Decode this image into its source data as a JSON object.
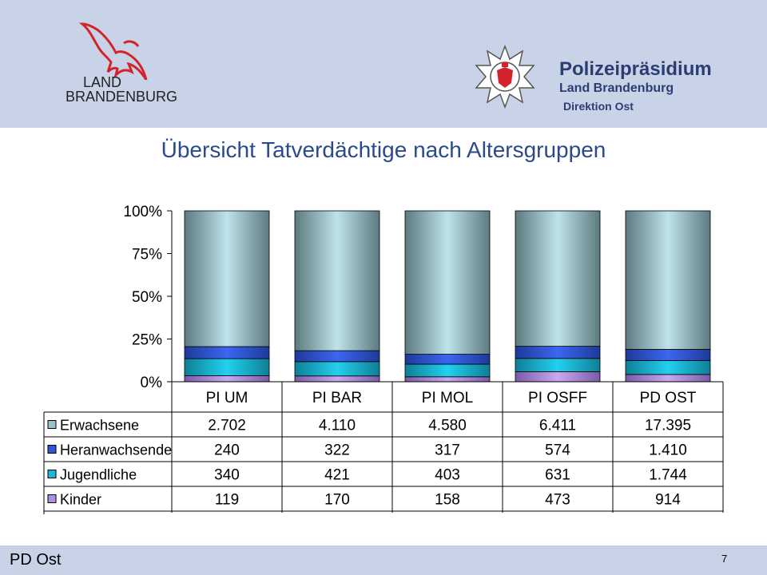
{
  "header": {
    "brand_line1": "LAND",
    "brand_line2": "BRANDENBURG",
    "agency_title": "Polizeipräsidium",
    "agency_subtitle": "Land Brandenburg",
    "agency_direction": "Direktion Ost"
  },
  "slide_title": "Übersicht Tatverdächtige nach Altersgruppen",
  "footer": {
    "label": "PD Ost",
    "page_number": "7"
  },
  "colors": {
    "header_bg": "#c9d3e7",
    "title": "#2b4a8c",
    "erwachsene": "#9cc0c8",
    "heranwachsende": "#2f55d8",
    "jugendliche": "#19b9d6",
    "kinder": "#b08ee0"
  },
  "chart_data": {
    "type": "bar",
    "stacked": true,
    "normalized": true,
    "categories": [
      "PI UM",
      "PI BAR",
      "PI MOL",
      "PI OSFF",
      "PD OST"
    ],
    "y_tick_labels": [
      "100%",
      "75%",
      "50%",
      "25%",
      "0%"
    ],
    "ylim": [
      0,
      100
    ],
    "series": [
      {
        "name": "Erwachsene",
        "values": [
          2702,
          4110,
          4580,
          6411,
          17395
        ],
        "labels": [
          "2.702",
          "4.110",
          "4.580",
          "6.411",
          "17.395"
        ]
      },
      {
        "name": "Heranwachsende",
        "values": [
          240,
          322,
          317,
          574,
          1410
        ],
        "labels": [
          "240",
          "322",
          "317",
          "574",
          "1.410"
        ]
      },
      {
        "name": "Jugendliche",
        "values": [
          340,
          421,
          403,
          631,
          1744
        ],
        "labels": [
          "340",
          "421",
          "403",
          "631",
          "1.744"
        ]
      },
      {
        "name": "Kinder",
        "values": [
          119,
          170,
          158,
          473,
          914
        ],
        "labels": [
          "119",
          "170",
          "158",
          "473",
          "914"
        ]
      }
    ]
  }
}
